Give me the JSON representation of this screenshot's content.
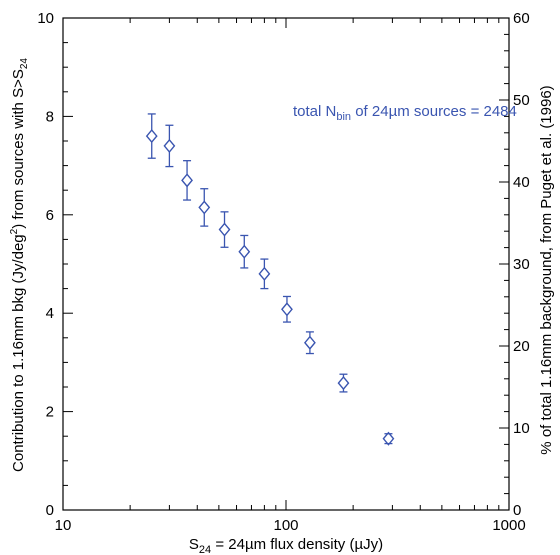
{
  "chart_data": {
    "type": "scatter",
    "title": "",
    "xlabel_main": "S",
    "xlabel_sub": "24",
    "xlabel_rest": " = 24µm flux density (µJy)",
    "ylabel_main": "Contribution to 1.16mm bkg (Jy/deg",
    "ylabel_sup": "2",
    "ylabel_mid": ") from sources with S>S",
    "ylabel_sub": "24",
    "y2label": "% of total 1.16mm background, from Puget et al. (1996)",
    "annotation_pre": "total N",
    "annotation_sub": "bin",
    "annotation_post": " of 24µm sources = 2484",
    "xscale": "log",
    "xlim": [
      10,
      1000
    ],
    "ylim": [
      0,
      10
    ],
    "y2lim": [
      0,
      60
    ],
    "x_ticks": [
      "10",
      "100",
      "1000"
    ],
    "y_ticks": [
      "0",
      "2",
      "4",
      "6",
      "8",
      "10"
    ],
    "y2_ticks": [
      "0",
      "10",
      "20",
      "30",
      "40",
      "50",
      "60"
    ],
    "color": "#3a55b0",
    "points": [
      {
        "x": 25,
        "y": 7.6,
        "err": 0.45
      },
      {
        "x": 30,
        "y": 7.4,
        "err": 0.42
      },
      {
        "x": 36,
        "y": 6.7,
        "err": 0.4
      },
      {
        "x": 43,
        "y": 6.15,
        "err": 0.38
      },
      {
        "x": 53,
        "y": 5.7,
        "err": 0.36
      },
      {
        "x": 65,
        "y": 5.25,
        "err": 0.33
      },
      {
        "x": 80,
        "y": 4.8,
        "err": 0.3
      },
      {
        "x": 101,
        "y": 4.08,
        "err": 0.26
      },
      {
        "x": 128,
        "y": 3.4,
        "err": 0.22
      },
      {
        "x": 181,
        "y": 2.58,
        "err": 0.18
      },
      {
        "x": 288,
        "y": 1.45,
        "err": 0.1
      }
    ]
  }
}
